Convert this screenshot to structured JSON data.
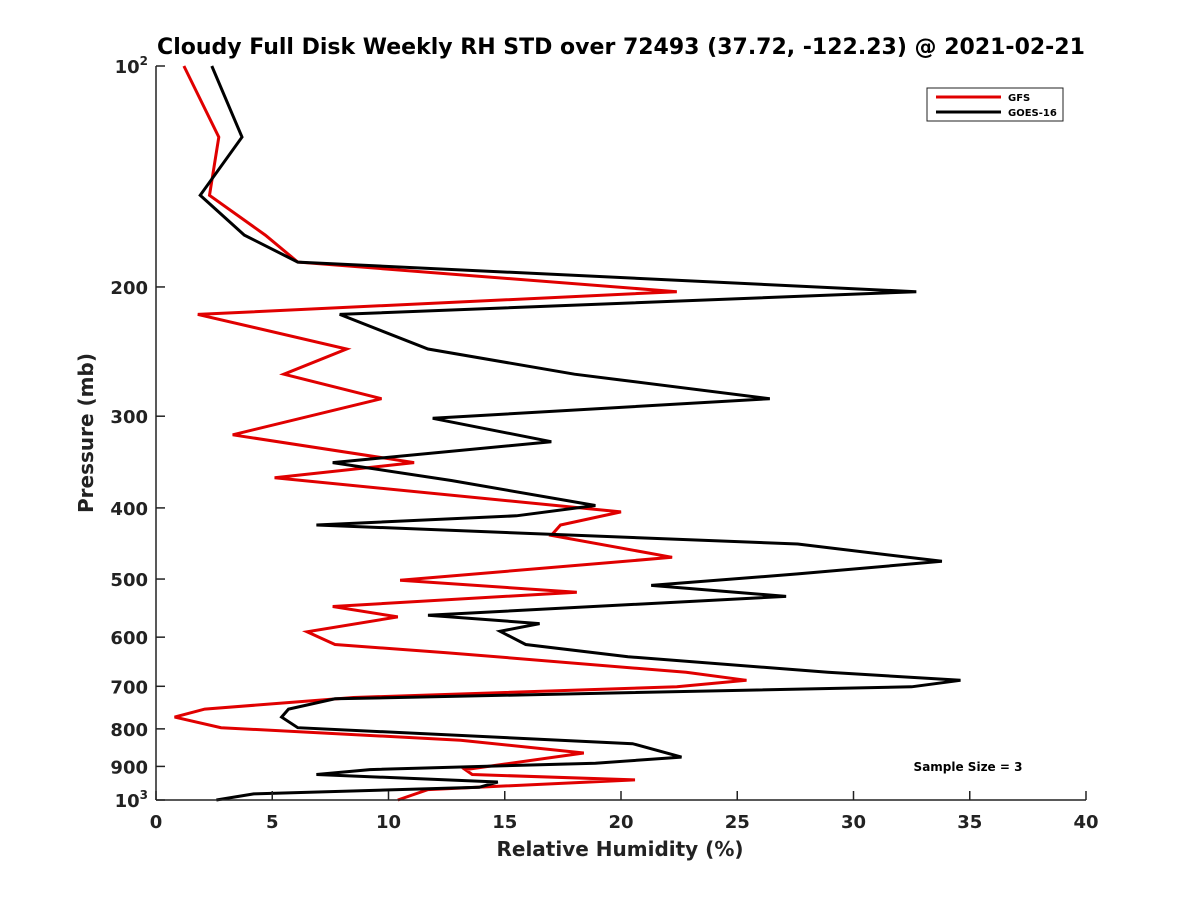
{
  "chart_data": {
    "type": "line",
    "title": "Cloudy Full Disk Weekly RH STD over 72493 (37.72, -122.23) @ 2021-02-21",
    "xlabel": "Relative Humidity (%)",
    "ylabel": "Pressure (mb)",
    "xlim": [
      0,
      40
    ],
    "ylim": [
      100,
      1000
    ],
    "yscale": "log",
    "y_reversed": true,
    "grid": false,
    "legend_position": "top-right",
    "annotation": "Sample Size = 3",
    "x_ticks": [
      "0",
      "5",
      "10",
      "15",
      "20",
      "25",
      "30",
      "35",
      "40"
    ],
    "x_tick_values": [
      0,
      5,
      10,
      15,
      20,
      25,
      30,
      35,
      40
    ],
    "y_ticks": [
      {
        "value": 100,
        "base": "10",
        "exp": "2"
      },
      {
        "value": 200,
        "label": "200"
      },
      {
        "value": 300,
        "label": "300"
      },
      {
        "value": 400,
        "label": "400"
      },
      {
        "value": 500,
        "label": "500"
      },
      {
        "value": 600,
        "label": "600"
      },
      {
        "value": 700,
        "label": "700"
      },
      {
        "value": 800,
        "label": "800"
      },
      {
        "value": 900,
        "label": "900"
      },
      {
        "value": 1000,
        "base": "10",
        "exp": "3"
      }
    ],
    "series": [
      {
        "name": "GFS",
        "color": "#e00000",
        "points": [
          [
            1.2,
            100
          ],
          [
            2.7,
            125
          ],
          [
            2.3,
            150
          ],
          [
            4.7,
            170
          ],
          [
            6.1,
            185
          ],
          [
            22.4,
            203
          ],
          [
            1.8,
            218
          ],
          [
            8.2,
            243
          ],
          [
            5.5,
            263
          ],
          [
            9.7,
            284
          ],
          [
            3.3,
            318
          ],
          [
            11.1,
            347
          ],
          [
            5.1,
            364
          ],
          [
            20.0,
            405
          ],
          [
            17.4,
            422
          ],
          [
            17.0,
            436
          ],
          [
            22.2,
            467
          ],
          [
            10.5,
            502
          ],
          [
            18.1,
            521
          ],
          [
            7.6,
            545
          ],
          [
            10.4,
            563
          ],
          [
            6.5,
            590
          ],
          [
            7.7,
            614
          ],
          [
            12.5,
            630
          ],
          [
            22.8,
            670
          ],
          [
            25.4,
            687
          ],
          [
            22.4,
            701
          ],
          [
            8.5,
            725
          ],
          [
            2.1,
            752
          ],
          [
            0.8,
            771
          ],
          [
            2.8,
            797
          ],
          [
            13.1,
            829
          ],
          [
            18.4,
            863
          ],
          [
            13.3,
            909
          ],
          [
            13.6,
            923
          ],
          [
            20.6,
            939
          ],
          [
            11.7,
            968
          ],
          [
            10.4,
            1000
          ]
        ]
      },
      {
        "name": "GOES-16",
        "color": "#000000",
        "points": [
          [
            2.4,
            100
          ],
          [
            3.7,
            125
          ],
          [
            1.9,
            150
          ],
          [
            3.8,
            170
          ],
          [
            6.1,
            185
          ],
          [
            32.7,
            203
          ],
          [
            7.9,
            218
          ],
          [
            11.7,
            243
          ],
          [
            18.0,
            263
          ],
          [
            26.4,
            284
          ],
          [
            11.9,
            302
          ],
          [
            17.0,
            325
          ],
          [
            7.6,
            347
          ],
          [
            12.7,
            367
          ],
          [
            18.9,
            397
          ],
          [
            15.5,
            410
          ],
          [
            6.9,
            422
          ],
          [
            27.6,
            448
          ],
          [
            33.8,
            473
          ],
          [
            27.6,
            492
          ],
          [
            21.3,
            510
          ],
          [
            27.1,
            528
          ],
          [
            11.7,
            560
          ],
          [
            16.5,
            575
          ],
          [
            14.8,
            589
          ],
          [
            15.9,
            614
          ],
          [
            20.3,
            638
          ],
          [
            28.9,
            670
          ],
          [
            34.6,
            687
          ],
          [
            32.5,
            701
          ],
          [
            7.7,
            728
          ],
          [
            5.7,
            752
          ],
          [
            5.4,
            771
          ],
          [
            6.1,
            797
          ],
          [
            20.5,
            838
          ],
          [
            22.6,
            874
          ],
          [
            18.9,
            891
          ],
          [
            9.2,
            909
          ],
          [
            6.9,
            923
          ],
          [
            14.7,
            945
          ],
          [
            13.9,
            961
          ],
          [
            4.2,
            981
          ],
          [
            2.6,
            1000
          ]
        ]
      }
    ]
  }
}
